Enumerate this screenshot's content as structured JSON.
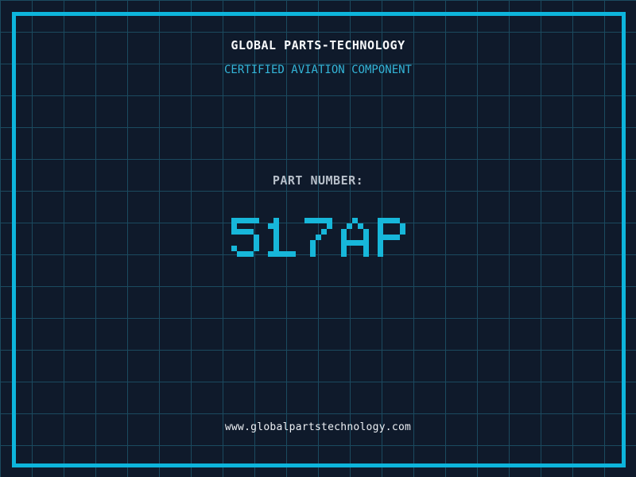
{
  "theme": {
    "bg": "#0f1a2b",
    "grid_line": "#1b4a5f",
    "frame": "#0db5dc",
    "accent_cyan": "#17b7da",
    "subtitle_cyan": "#33b5d8",
    "title_white": "#f8fafc",
    "label_gray": "#b7bfc9",
    "footer_white": "#edf0f4"
  },
  "header": {
    "title": "GLOBAL PARTS-TECHNOLOGY",
    "subtitle": "CERTIFIED AVIATION COMPONENT"
  },
  "part": {
    "label": "PART NUMBER:",
    "value": "517AP"
  },
  "footer": {
    "url": "www.globalpartstechnology.com"
  }
}
